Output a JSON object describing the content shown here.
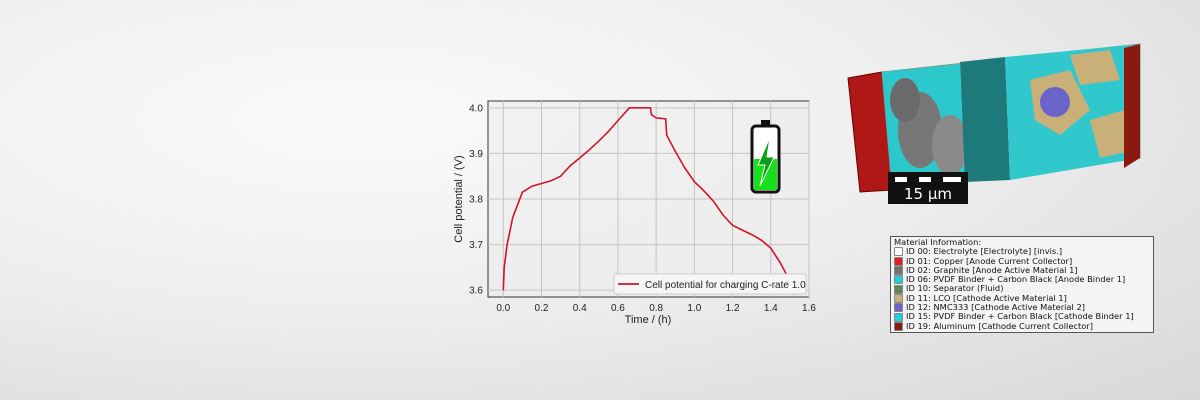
{
  "chart_data": {
    "type": "line",
    "title": "",
    "xlabel": "Time / (h)",
    "ylabel": "Cell potential / (V)",
    "xlim": [
      -0.08,
      1.6
    ],
    "ylim": [
      3.585,
      4.015
    ],
    "xticks": [
      "0.0",
      "0.2",
      "0.4",
      "0.6",
      "0.8",
      "1.0",
      "1.2",
      "1.4",
      "1.6"
    ],
    "yticks": [
      "3.6",
      "3.7",
      "3.8",
      "3.9",
      "4.0"
    ],
    "grid": true,
    "legend_position": "bottom-right",
    "series": [
      {
        "name": "Cell potential for charging C-rate 1.0",
        "color": "#d0142a",
        "x": [
          0,
          0.005,
          0.02,
          0.05,
          0.1,
          0.15,
          0.2,
          0.25,
          0.3,
          0.35,
          0.4,
          0.45,
          0.5,
          0.55,
          0.6,
          0.66,
          0.77,
          0.775,
          0.8,
          0.85,
          0.855,
          0.9,
          0.95,
          1.0,
          1.05,
          1.1,
          1.15,
          1.2,
          1.25,
          1.3,
          1.35,
          1.4,
          1.45,
          1.5,
          1.52
        ],
        "y": [
          3.6,
          3.65,
          3.7,
          3.76,
          3.815,
          3.828,
          3.834,
          3.84,
          3.85,
          3.873,
          3.89,
          3.908,
          3.927,
          3.948,
          3.972,
          4.0,
          4.0,
          3.985,
          3.978,
          3.976,
          3.94,
          3.905,
          3.868,
          3.838,
          3.818,
          3.795,
          3.765,
          3.742,
          3.732,
          3.722,
          3.71,
          3.692,
          3.66,
          3.62,
          3.59
        ]
      }
    ]
  },
  "battery_icon": "battery-charging-icon",
  "render": {
    "scale_bar": "15 µm",
    "legend_title": "Material Information:",
    "materials": [
      {
        "label": "ID 00: Electrolyte [Electrolyte] [invis.]",
        "color": "#ffffff"
      },
      {
        "label": "ID 01: Copper [Anode Current Collector]",
        "color": "#e02020"
      },
      {
        "label": "ID 02: Graphite [Anode Active Material 1]",
        "color": "#707070"
      },
      {
        "label": "ID 06: PVDF Binder + Carbon Black [Anode Binder 1]",
        "color": "#20d0d8"
      },
      {
        "label": "ID 10: Separator (Fluid)",
        "color": "#5a8a5a"
      },
      {
        "label": "ID 11: LCO [Cathode Active Material 1]",
        "color": "#c8b078"
      },
      {
        "label": "ID 12: NMC333 [Cathode Active Material 2]",
        "color": "#6a64c8"
      },
      {
        "label": "ID 15: PVDF Binder + Carbon Black [Cathode Binder 1]",
        "color": "#20d0d8"
      },
      {
        "label": "ID 19: Aluminum [Cathode Current Collector]",
        "color": "#8a1a10"
      }
    ]
  }
}
